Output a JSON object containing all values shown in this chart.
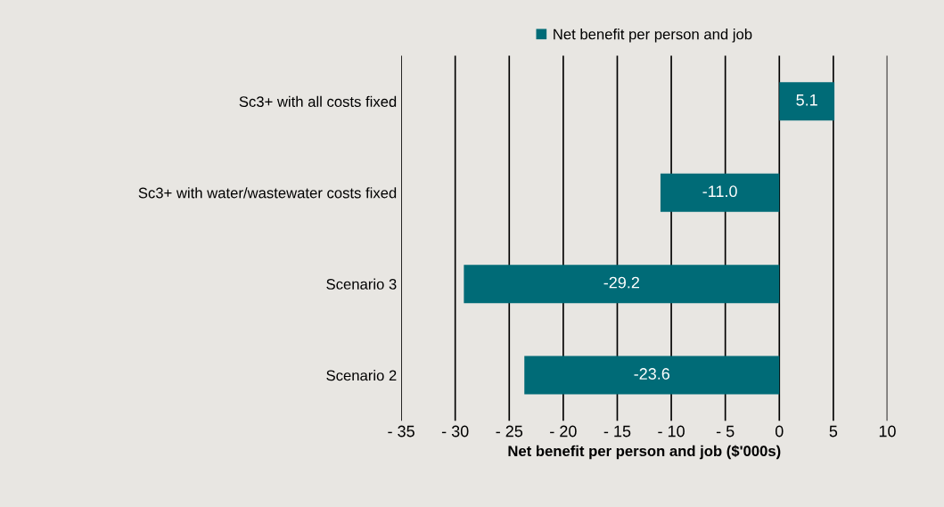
{
  "chart_data": {
    "type": "bar",
    "orientation": "horizontal",
    "categories": [
      "Sc3+ with all costs fixed",
      "Sc3+ with water/wastewater costs fixed",
      "Scenario 3",
      "Scenario 2"
    ],
    "series": [
      {
        "name": "Net benefit per person and job",
        "color": "#006b77",
        "values": [
          5.1,
          -11.0,
          -29.2,
          -23.6
        ]
      }
    ],
    "value_labels": [
      "5.1",
      "-11.0",
      "-29.2",
      "-23.6"
    ],
    "xlabel": "Net benefit per person and job ($'000s)",
    "xlim": [
      -35,
      10
    ],
    "xticks": [
      {
        "value": -35,
        "label": "- 35"
      },
      {
        "value": -30,
        "label": "- 30"
      },
      {
        "value": -25,
        "label": "- 25"
      },
      {
        "value": -20,
        "label": "- 20"
      },
      {
        "value": -15,
        "label": "- 15"
      },
      {
        "value": -10,
        "label": "- 10"
      },
      {
        "value": -5,
        "label": "- 5"
      },
      0,
      5,
      10
    ],
    "grid": "x",
    "legend": "top"
  }
}
